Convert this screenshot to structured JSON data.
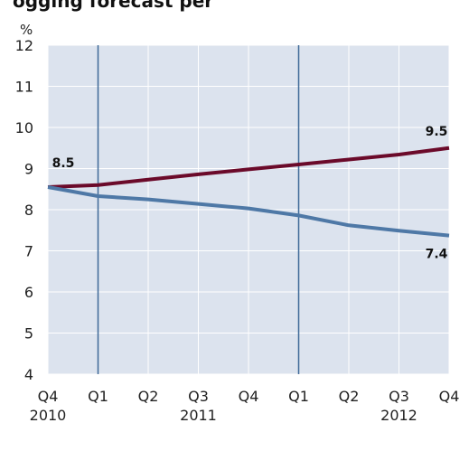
{
  "chart_data": {
    "type": "line",
    "title": "ogging forecast per",
    "ylabel": "%",
    "ylim": [
      4,
      12
    ],
    "yticks": [
      4,
      5,
      6,
      7,
      8,
      9,
      10,
      11,
      12
    ],
    "categories": [
      "Q4",
      "Q1",
      "Q2",
      "Q3",
      "Q4",
      "Q1",
      "Q2",
      "Q3",
      "Q4"
    ],
    "years": [
      {
        "label": "2010",
        "index": 0
      },
      {
        "label": "2011",
        "index": 3
      },
      {
        "label": "2012",
        "index": 7
      }
    ],
    "vlines_at_index": [
      1,
      5
    ],
    "grid": true,
    "series": [
      {
        "color": "#6b0a2a",
        "values": [
          8.55,
          8.6,
          8.73,
          8.86,
          8.98,
          9.1,
          9.22,
          9.34,
          9.5
        ]
      },
      {
        "color": "#4e78a6",
        "values": [
          8.55,
          8.33,
          8.25,
          8.14,
          8.03,
          7.86,
          7.62,
          7.49,
          7.37
        ]
      }
    ],
    "annotations": [
      {
        "text": "8.5",
        "series": 0,
        "index": 0
      },
      {
        "text": "9.5",
        "series": 0,
        "index": 8
      },
      {
        "text": "7.4",
        "series": 1,
        "index": 8
      }
    ]
  }
}
